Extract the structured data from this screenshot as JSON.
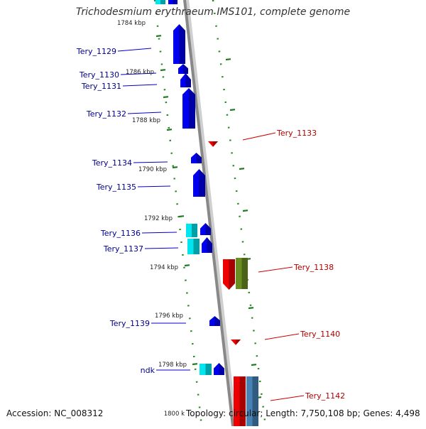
{
  "title": "Trichodesmium erythraeum IMS101, complete genome",
  "footer": {
    "accession": "Accession: NC_008312",
    "summary": "Topology: circular; Length: 7,750,108 bp; Genes: 4,498"
  },
  "ticks": [
    "1784 kbp",
    "1786 kbp",
    "1788 kbp",
    "1790 kbp",
    "1792 kbp",
    "1794 kbp",
    "1796 kbp",
    "1798 kbp",
    "1800 k"
  ],
  "left_genes": [
    "Tery_1129",
    "Tery_1130",
    "Tery_1131",
    "Tery_1132",
    "Tery_1134",
    "Tery_1135",
    "Tery_1136",
    "Tery_1137",
    "Tery_1139",
    "ndk"
  ],
  "right_genes": [
    "Tery_1133",
    "Tery_1138",
    "Tery_1140",
    "Tery_1142"
  ],
  "colors": {
    "blue_gene": "#0000ee",
    "cyan_gene": "#00e5ee",
    "red_gene": "#ee0000",
    "olive_gene": "#6b8e23",
    "steel_gene": "#4682b4",
    "backbone": "#888888",
    "ring_dots": "#228b22",
    "left_label": "#00008b",
    "right_label": "#b00000"
  }
}
